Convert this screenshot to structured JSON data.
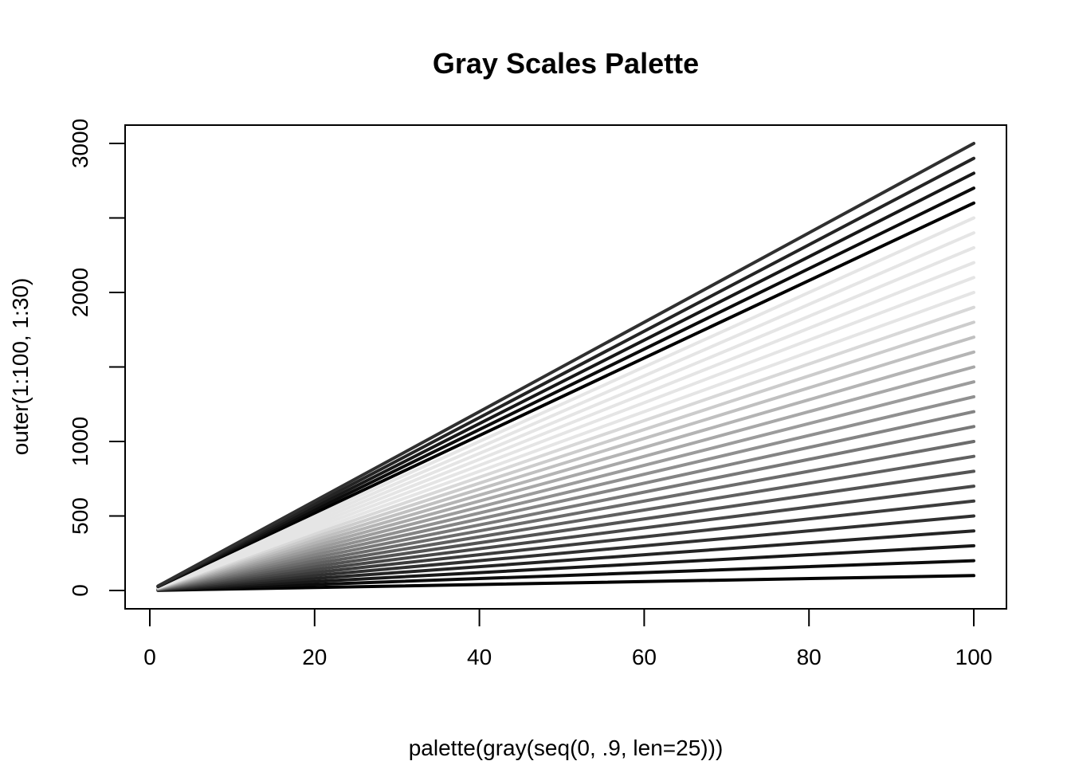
{
  "chart_data": {
    "type": "line",
    "title": "Gray Scales Palette",
    "xlabel": "palette(gray(seq(0, .9, len=25)))",
    "ylabel": "outer(1:100, 1:30)",
    "xlim": [
      1,
      100
    ],
    "ylim": [
      0,
      3000
    ],
    "x_ticks": [
      0,
      20,
      40,
      60,
      80,
      100
    ],
    "x_tick_labels": [
      "0",
      "20",
      "40",
      "60",
      "80",
      "100"
    ],
    "y_ticks": [
      0,
      500,
      1000,
      1500,
      2000,
      2500,
      3000
    ],
    "y_tick_labels": [
      "0",
      "500",
      "1000",
      "",
      "2000",
      "",
      "3000"
    ],
    "grid": false,
    "legend": "none",
    "series_rule": "line k (k = 1..30) runs from (1, k) to (100, 100*k), y = x*k",
    "series": [
      {
        "multiplier": 1,
        "values_at_x": [
          1,
          100
        ],
        "color": "#000000"
      },
      {
        "multiplier": 2,
        "values_at_x": [
          2,
          200
        ],
        "color": "#0C0C0C"
      },
      {
        "multiplier": 3,
        "values_at_x": [
          3,
          300
        ],
        "color": "#181818"
      },
      {
        "multiplier": 4,
        "values_at_x": [
          4,
          400
        ],
        "color": "#242424"
      },
      {
        "multiplier": 5,
        "values_at_x": [
          5,
          500
        ],
        "color": "#303030"
      },
      {
        "multiplier": 6,
        "values_at_x": [
          6,
          600
        ],
        "color": "#3C3C3C"
      },
      {
        "multiplier": 7,
        "values_at_x": [
          7,
          700
        ],
        "color": "#484848"
      },
      {
        "multiplier": 8,
        "values_at_x": [
          8,
          800
        ],
        "color": "#545454"
      },
      {
        "multiplier": 9,
        "values_at_x": [
          9,
          900
        ],
        "color": "#606060"
      },
      {
        "multiplier": 10,
        "values_at_x": [
          10,
          1000
        ],
        "color": "#6C6C6C"
      },
      {
        "multiplier": 11,
        "values_at_x": [
          11,
          1100
        ],
        "color": "#787878"
      },
      {
        "multiplier": 12,
        "values_at_x": [
          12,
          1200
        ],
        "color": "#848484"
      },
      {
        "multiplier": 13,
        "values_at_x": [
          13,
          1300
        ],
        "color": "#909090"
      },
      {
        "multiplier": 14,
        "values_at_x": [
          14,
          1400
        ],
        "color": "#9C9C9C"
      },
      {
        "multiplier": 15,
        "values_at_x": [
          15,
          1500
        ],
        "color": "#A8A8A8"
      },
      {
        "multiplier": 16,
        "values_at_x": [
          16,
          1600
        ],
        "color": "#B4B4B4"
      },
      {
        "multiplier": 17,
        "values_at_x": [
          17,
          1700
        ],
        "color": "#C0C0C0"
      },
      {
        "multiplier": 18,
        "values_at_x": [
          18,
          1800
        ],
        "color": "#CCCCCC"
      },
      {
        "multiplier": 19,
        "values_at_x": [
          19,
          1900
        ],
        "color": "#D8D8D8"
      },
      {
        "multiplier": 20,
        "values_at_x": [
          20,
          2000
        ],
        "color": "#E5E5E5"
      },
      {
        "multiplier": 21,
        "values_at_x": [
          21,
          2100
        ],
        "color": "#E5E5E5"
      },
      {
        "multiplier": 22,
        "values_at_x": [
          22,
          2200
        ],
        "color": "#E5E5E5"
      },
      {
        "multiplier": 23,
        "values_at_x": [
          23,
          2300
        ],
        "color": "#E5E5E5"
      },
      {
        "multiplier": 24,
        "values_at_x": [
          24,
          2400
        ],
        "color": "#E5E5E5"
      },
      {
        "multiplier": 25,
        "values_at_x": [
          25,
          2500
        ],
        "color": "#E5E5E5"
      },
      {
        "multiplier": 26,
        "values_at_x": [
          26,
          2600
        ],
        "color": "#000000"
      },
      {
        "multiplier": 27,
        "values_at_x": [
          27,
          2700
        ],
        "color": "#0C0C0C"
      },
      {
        "multiplier": 28,
        "values_at_x": [
          28,
          2800
        ],
        "color": "#181818"
      },
      {
        "multiplier": 29,
        "values_at_x": [
          29,
          2900
        ],
        "color": "#242424"
      },
      {
        "multiplier": 30,
        "values_at_x": [
          30,
          3000
        ],
        "color": "#303030"
      }
    ]
  }
}
